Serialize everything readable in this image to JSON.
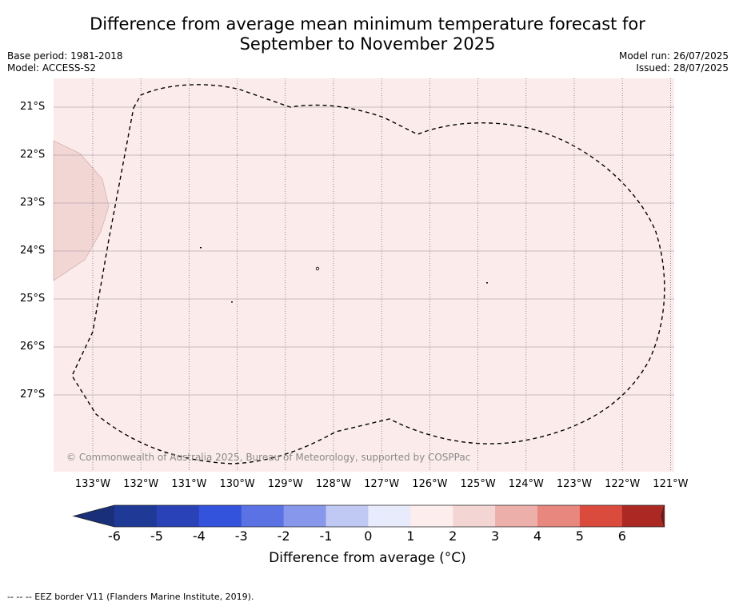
{
  "title_line1": "Difference from average mean minimum temperature forecast for",
  "title_line2": "September to November 2025",
  "meta_left": {
    "line1": "Base period: 1981-2018",
    "line2": "Model: ACCESS-S2"
  },
  "meta_right": {
    "line1": "Model run: 26/07/2025",
    "line2": "Issued: 28/07/2025"
  },
  "map": {
    "lat_labels": [
      "21°S",
      "22°S",
      "23°S",
      "24°S",
      "25°S",
      "26°S",
      "27°S"
    ],
    "lon_labels": [
      "133°W",
      "132°W",
      "131°W",
      "130°W",
      "129°W",
      "128°W",
      "127°W",
      "126°W",
      "125°W",
      "124°W",
      "123°W",
      "122°W",
      "121°W"
    ],
    "background_color": "#fbeceb",
    "patch_color": "#f2d6d4",
    "copyright": "© Commonwealth of Australia 2025, Bureau of Meteorology, supported by COSPPac"
  },
  "colorbar": {
    "ticks": [
      "-6",
      "-5",
      "-4",
      "-3",
      "-2",
      "-1",
      "0",
      "1",
      "2",
      "3",
      "4",
      "5",
      "6"
    ],
    "colors": [
      "#1f3a96",
      "#2942b8",
      "#3353dc",
      "#5a72e4",
      "#8797ec",
      "#c0c8f4",
      "#e8ebfb",
      "#fdeeed",
      "#f3d6d4",
      "#edafa9",
      "#e8877e",
      "#db4b3d",
      "#ab2922"
    ],
    "end_low_color": "#1a2f79",
    "end_high_color": "#731c1a",
    "label": "Difference from average (°C)"
  },
  "footnote": "--  --  -- EEZ border V11 (Flanders Marine Institute, 2019)."
}
